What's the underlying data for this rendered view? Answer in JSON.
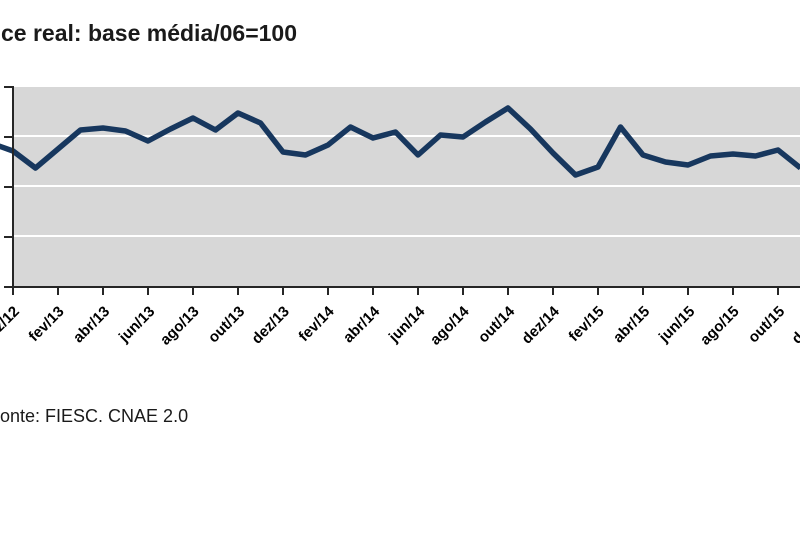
{
  "chart": {
    "title": "ce real: base média/06=100"
  },
  "source": {
    "text": "onte: FIESC. CNAE 2.0"
  },
  "colors": {
    "line": "#17375E",
    "plot_background": "#D7D7D7",
    "gridline": "#FFFFFF",
    "axis": "#262626",
    "text": "#1A1A1A"
  },
  "chart_data": {
    "type": "line",
    "title": "ce real: base média/06=100",
    "x": [
      "nov/12",
      "dez/12",
      "jan/13",
      "fev/13",
      "mar/13",
      "abr/13",
      "mai/13",
      "jun/13",
      "jul/13",
      "ago/13",
      "set/13",
      "out/13",
      "nov/13",
      "dez/13",
      "jan/14",
      "fev/14",
      "mar/14",
      "abr/14",
      "mai/14",
      "jun/14",
      "jul/14",
      "ago/14",
      "set/14",
      "out/14",
      "nov/14",
      "dez/14",
      "jan/15",
      "fev/15",
      "mar/15",
      "abr/15",
      "mai/15",
      "jun/15",
      "jul/15",
      "ago/15",
      "set/15",
      "out/15",
      "nov/15"
    ],
    "values": [
      108.8,
      107.2,
      103.8,
      107.6,
      111.4,
      111.8,
      111.2,
      109.2,
      111.6,
      113.8,
      111.4,
      114.8,
      112.8,
      107.0,
      106.4,
      108.4,
      112.0,
      109.8,
      111.0,
      106.4,
      110.4,
      110.0,
      113.0,
      115.8,
      111.6,
      106.8,
      102.4,
      104.0,
      112.0,
      106.4,
      105.0,
      104.4,
      106.2,
      106.6,
      106.2,
      107.4,
      103.8
    ],
    "x_tick_labels": [
      "dez/12",
      "fev/13",
      "abr/13",
      "jun/13",
      "ago/13",
      "out/13",
      "dez/13",
      "fev/14",
      "abr/14",
      "jun/14",
      "ago/14",
      "out/14",
      "dez/14",
      "fev/15",
      "abr/15",
      "jun/15",
      "ago/15",
      "out/15",
      "dez/15"
    ],
    "xlabel": "",
    "ylabel": "",
    "ylim": [
      80,
      120
    ],
    "y_gridline_values": [
      90,
      100,
      110
    ],
    "grid": true,
    "legend": false,
    "y_axis_tick_values_visible": false,
    "notes": "Screenshot is cropped on the left (y-axis value labels and start of title/source cut off) and on the right (dez/15 label partially visible); values estimated assuming middle gridline = 100 with gridline step of 10."
  }
}
